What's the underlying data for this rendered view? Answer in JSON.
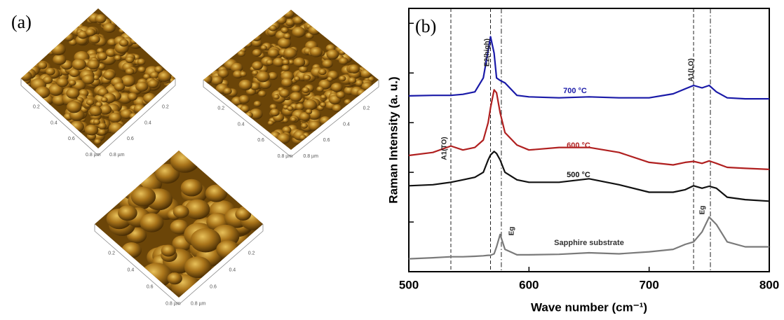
{
  "panel_a": {
    "label": "(a)",
    "afm_axis_labels": [
      "0.2",
      "0.4",
      "0.6",
      "0.8 µm"
    ]
  },
  "chart_data": {
    "type": "line",
    "panel_label": "(b)",
    "x_label": "Wave number (cm⁻¹)",
    "y_label": "Raman Intensity (a. u.)",
    "x": [
      500,
      520,
      535,
      545,
      555,
      562,
      566,
      568,
      571,
      573,
      576,
      580,
      590,
      600,
      625,
      650,
      675,
      700,
      720,
      730,
      737,
      744,
      750,
      756,
      765,
      780,
      800
    ],
    "series": [
      {
        "name": "Sapphire substrate",
        "color": "#7a7a7a",
        "values": [
          0.26,
          0.28,
          0.3,
          0.3,
          0.31,
          0.32,
          0.33,
          0.33,
          0.36,
          0.5,
          0.75,
          0.45,
          0.34,
          0.34,
          0.35,
          0.38,
          0.36,
          0.4,
          0.45,
          0.55,
          0.6,
          0.8,
          1.1,
          0.95,
          0.6,
          0.5,
          0.5
        ]
      },
      {
        "name": "500 °C",
        "color": "#111111",
        "values": [
          1.73,
          1.75,
          1.8,
          1.85,
          1.9,
          2.0,
          2.25,
          2.35,
          2.42,
          2.38,
          2.25,
          2.0,
          1.85,
          1.8,
          1.8,
          1.87,
          1.75,
          1.6,
          1.6,
          1.65,
          1.73,
          1.68,
          1.72,
          1.68,
          1.5,
          1.45,
          1.42
        ]
      },
      {
        "name": "600 °C",
        "color": "#b02020",
        "values": [
          2.34,
          2.4,
          2.53,
          2.45,
          2.5,
          2.65,
          3.0,
          3.3,
          3.66,
          3.6,
          3.2,
          2.8,
          2.55,
          2.45,
          2.5,
          2.5,
          2.4,
          2.2,
          2.15,
          2.2,
          2.22,
          2.18,
          2.23,
          2.18,
          2.1,
          2.08,
          2.06
        ]
      },
      {
        "name": "700 °C",
        "color": "#1a1aa8",
        "values": [
          3.54,
          3.55,
          3.55,
          3.57,
          3.62,
          3.9,
          4.45,
          4.73,
          4.4,
          3.9,
          3.85,
          3.8,
          3.55,
          3.52,
          3.5,
          3.52,
          3.5,
          3.5,
          3.58,
          3.68,
          3.75,
          3.7,
          3.75,
          3.62,
          3.5,
          3.48,
          3.48
        ]
      }
    ],
    "annotations": [
      "A1(TO)",
      "E2(high)",
      "Eg",
      "A1(LO)",
      "Eg"
    ],
    "reference_lines": [
      {
        "x": 535,
        "style": "dashed"
      },
      {
        "x": 568,
        "style": "dashed"
      },
      {
        "x": 577,
        "style": "dashdot"
      },
      {
        "x": 737,
        "style": "dashed"
      },
      {
        "x": 751,
        "style": "dashdot"
      }
    ],
    "xlim": [
      500,
      800
    ],
    "xticks": [
      500,
      600,
      700,
      800
    ],
    "ylim": [
      0,
      5.3
    ],
    "yticks": [
      1,
      2,
      3,
      4,
      5
    ]
  }
}
